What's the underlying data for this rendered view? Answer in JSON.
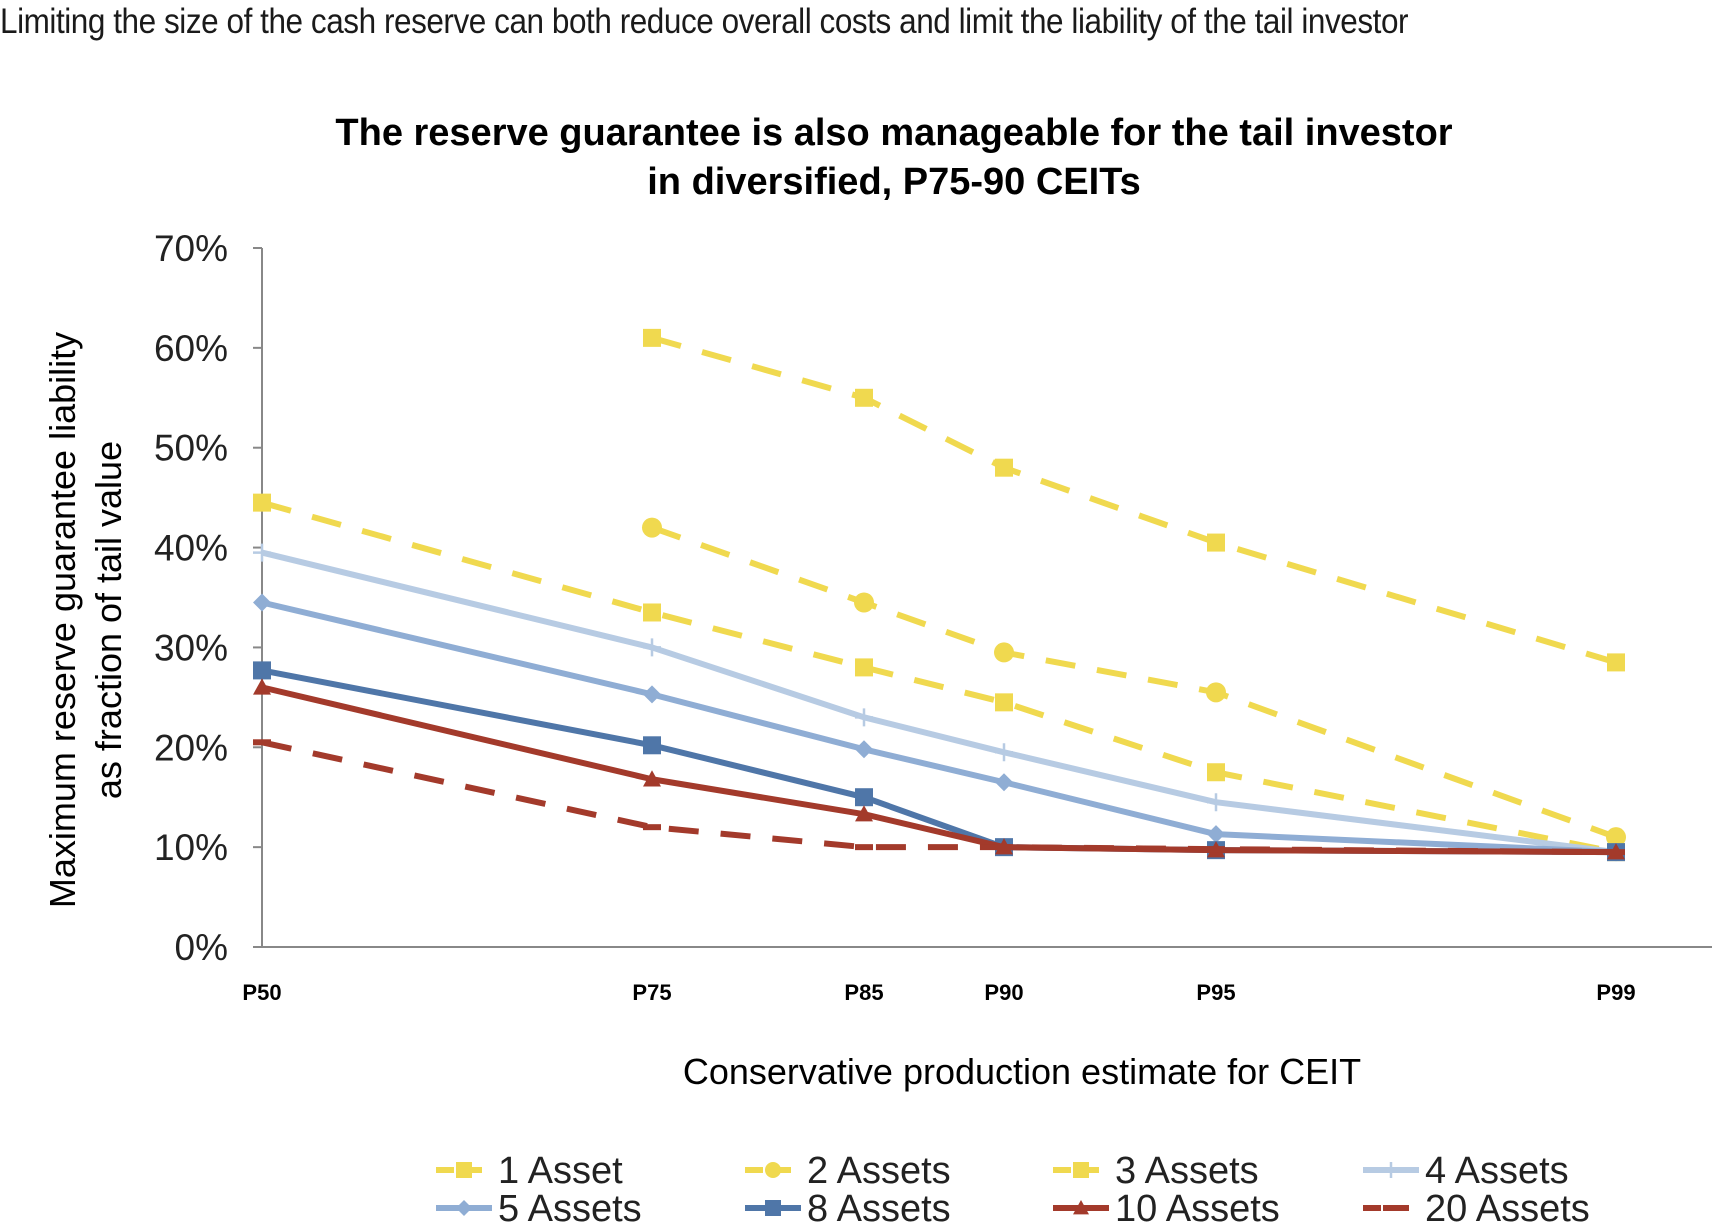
{
  "header": {
    "text": "Limiting the size of the cash reserve can both reduce overall costs and limit the liability of the tail investor"
  },
  "chart_data": {
    "type": "line",
    "title": [
      "The reserve guarantee is also manageable for the tail investor",
      "in diversified, P75-90 CEITs"
    ],
    "xlabel": "Conservative production estimate for CEIT",
    "ylabel": [
      "Maximum reserve guarantee liability",
      "as fraction of tail value"
    ],
    "x_ticks": [
      "P50",
      "P75",
      "P85",
      "P90",
      "P95",
      "P99"
    ],
    "x_ticks_numeric": [
      50,
      75,
      85,
      90,
      95,
      99
    ],
    "ylim": [
      0,
      0.7
    ],
    "y_ticks": [
      "0%",
      "10%",
      "20%",
      "30%",
      "40%",
      "50%",
      "60%",
      "70%"
    ],
    "grid": false,
    "legend_position": "bottom",
    "series": [
      {
        "name": "1 Asset",
        "color": "#f0d94f",
        "dash": true,
        "marker": "square",
        "x": [
          75,
          85,
          90,
          95,
          99
        ],
        "values": [
          0.61,
          0.55,
          0.48,
          0.405,
          0.285
        ]
      },
      {
        "name": "2 Assets",
        "color": "#f0d94f",
        "dash": true,
        "marker": "circle",
        "x": [
          75,
          85,
          90,
          95,
          99
        ],
        "values": [
          0.42,
          0.345,
          0.295,
          0.255,
          0.11
        ]
      },
      {
        "name": "3 Assets",
        "color": "#f0d94f",
        "dash": true,
        "marker": "square",
        "x": [
          50,
          75,
          85,
          90,
          95,
          99
        ],
        "values": [
          0.445,
          0.335,
          0.28,
          0.245,
          0.175,
          0.095
        ]
      },
      {
        "name": "4 Assets",
        "color": "#b7cbe3",
        "dash": false,
        "marker": "plus",
        "x": [
          50,
          75,
          85,
          90,
          95,
          99
        ],
        "values": [
          0.395,
          0.3,
          0.23,
          0.195,
          0.145,
          0.095
        ]
      },
      {
        "name": "5 Assets",
        "color": "#8fadd4",
        "dash": false,
        "marker": "diamond",
        "x": [
          50,
          75,
          85,
          90,
          95,
          99
        ],
        "values": [
          0.345,
          0.253,
          0.198,
          0.165,
          0.113,
          0.095
        ]
      },
      {
        "name": "8 Assets",
        "color": "#4f76a8",
        "dash": false,
        "marker": "square",
        "x": [
          50,
          75,
          85,
          90,
          95,
          99
        ],
        "values": [
          0.277,
          0.202,
          0.15,
          0.1,
          0.097,
          0.095
        ]
      },
      {
        "name": "10 Assets",
        "color": "#a33a2b",
        "dash": false,
        "marker": "triangle",
        "x": [
          50,
          75,
          85,
          90,
          95,
          99
        ],
        "values": [
          0.26,
          0.168,
          0.133,
          0.1,
          0.097,
          0.095
        ]
      },
      {
        "name": "20 Assets",
        "color": "#a33a2b",
        "dash": true,
        "marker": "dash",
        "x": [
          50,
          75,
          85,
          90,
          95,
          99
        ],
        "values": [
          0.205,
          0.12,
          0.1,
          0.1,
          0.098,
          0.095
        ]
      }
    ]
  }
}
